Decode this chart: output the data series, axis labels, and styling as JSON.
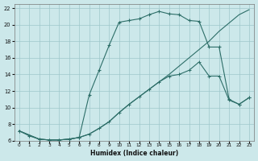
{
  "xlabel": "Humidex (Indice chaleur)",
  "bg_color": "#cce8ea",
  "grid_color": "#9fc8cb",
  "line_color": "#2d6e68",
  "xlim": [
    0,
    23
  ],
  "ylim": [
    6,
    22
  ],
  "xticks": [
    0,
    1,
    2,
    3,
    4,
    5,
    6,
    7,
    8,
    9,
    10,
    11,
    12,
    13,
    14,
    15,
    16,
    17,
    18,
    19,
    20,
    21,
    22,
    23
  ],
  "yticks": [
    6,
    8,
    10,
    12,
    14,
    16,
    18,
    20,
    22
  ],
  "line_main_x": [
    0,
    1,
    2,
    3,
    4,
    5,
    6,
    7,
    8,
    9,
    10,
    11,
    12,
    13,
    14,
    15,
    16,
    17,
    18,
    19,
    20,
    21,
    22,
    23
  ],
  "line_main_y": [
    7.2,
    6.6,
    6.2,
    6.1,
    6.1,
    6.2,
    6.4,
    11.5,
    14.5,
    17.5,
    20.3,
    20.5,
    20.7,
    21.2,
    21.6,
    21.3,
    21.2,
    20.5,
    20.4,
    17.3,
    17.3,
    11.0,
    10.4,
    11.2
  ],
  "line_mid_x": [
    0,
    2,
    3,
    4,
    5,
    6,
    7,
    8,
    9,
    10,
    11,
    12,
    13,
    14,
    15,
    16,
    17,
    18,
    19,
    20,
    21,
    22,
    23
  ],
  "line_mid_y": [
    7.2,
    6.2,
    6.1,
    6.1,
    6.2,
    6.4,
    6.8,
    7.5,
    8.3,
    9.4,
    10.4,
    11.3,
    12.2,
    13.1,
    13.8,
    14.0,
    14.5,
    15.5,
    13.8,
    13.8,
    10.9,
    10.4,
    11.2
  ],
  "line_low_x": [
    0,
    2,
    3,
    4,
    5,
    6,
    7,
    8,
    9,
    10,
    11,
    12,
    13,
    14,
    15,
    16,
    17,
    18,
    19,
    20,
    21,
    22,
    23
  ],
  "line_low_y": [
    7.2,
    6.2,
    6.1,
    6.1,
    6.2,
    6.4,
    6.8,
    7.5,
    8.3,
    9.4,
    10.4,
    11.3,
    12.2,
    13.1,
    14.0,
    15.0,
    16.0,
    17.0,
    18.0,
    19.2,
    20.2,
    21.2,
    21.8
  ]
}
